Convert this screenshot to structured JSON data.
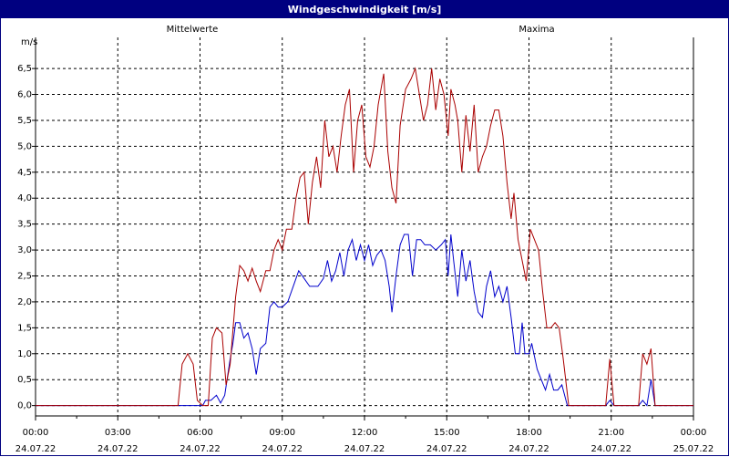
{
  "window": {
    "title": "Windgeschwindigkeit [m/s]"
  },
  "chart_data": {
    "type": "line",
    "title": "Windgeschwindigkeit [m/s]",
    "ylabel": "m/s",
    "ylim": [
      -0.2,
      7.1
    ],
    "xlim_hours": [
      0,
      24
    ],
    "grid": true,
    "x_ticks": [
      {
        "time": "00:00",
        "date": "24.07.22"
      },
      {
        "time": "03:00",
        "date": "24.07.22"
      },
      {
        "time": "06:00",
        "date": "24.07.22"
      },
      {
        "time": "09:00",
        "date": "24.07.22"
      },
      {
        "time": "12:00",
        "date": "24.07.22"
      },
      {
        "time": "15:00",
        "date": "24.07.22"
      },
      {
        "time": "18:00",
        "date": "24.07.22"
      },
      {
        "time": "21:00",
        "date": "24.07.22"
      },
      {
        "time": "00:00",
        "date": "25.07.22"
      }
    ],
    "y_ticks": [
      "0,0",
      "0,5",
      "1,0",
      "1,5",
      "2,0",
      "2,5",
      "3,0",
      "3,5",
      "4,0",
      "4,5",
      "5,0",
      "5,5",
      "6,0",
      "6,5"
    ],
    "y_tick_values": [
      0,
      0.5,
      1,
      1.5,
      2,
      2.5,
      3,
      3.5,
      4,
      4.5,
      5,
      5.5,
      6,
      6.5
    ],
    "series": [
      {
        "name": "Mittelwerte",
        "color": "#0000cc",
        "points": [
          [
            0,
            0
          ],
          [
            5.0,
            0
          ],
          [
            5.4,
            0
          ],
          [
            5.8,
            0
          ],
          [
            6.1,
            0
          ],
          [
            6.2,
            0.1
          ],
          [
            6.4,
            0.1
          ],
          [
            6.6,
            0.2
          ],
          [
            6.75,
            0.05
          ],
          [
            6.9,
            0.2
          ],
          [
            7.1,
            0.9
          ],
          [
            7.2,
            1.2
          ],
          [
            7.3,
            1.6
          ],
          [
            7.45,
            1.6
          ],
          [
            7.6,
            1.3
          ],
          [
            7.75,
            1.4
          ],
          [
            7.9,
            1.1
          ],
          [
            8.05,
            0.6
          ],
          [
            8.2,
            1.1
          ],
          [
            8.4,
            1.2
          ],
          [
            8.55,
            1.9
          ],
          [
            8.7,
            2.0
          ],
          [
            8.85,
            1.9
          ],
          [
            9.0,
            1.9
          ],
          [
            9.2,
            2.0
          ],
          [
            9.4,
            2.3
          ],
          [
            9.6,
            2.6
          ],
          [
            9.8,
            2.45
          ],
          [
            10.0,
            2.3
          ],
          [
            10.3,
            2.3
          ],
          [
            10.5,
            2.45
          ],
          [
            10.65,
            2.8
          ],
          [
            10.8,
            2.4
          ],
          [
            10.95,
            2.6
          ],
          [
            11.1,
            2.95
          ],
          [
            11.25,
            2.5
          ],
          [
            11.4,
            3.0
          ],
          [
            11.55,
            3.2
          ],
          [
            11.7,
            2.8
          ],
          [
            11.85,
            3.1
          ],
          [
            12.0,
            2.8
          ],
          [
            12.15,
            3.1
          ],
          [
            12.3,
            2.7
          ],
          [
            12.45,
            2.9
          ],
          [
            12.6,
            3.0
          ],
          [
            12.75,
            2.8
          ],
          [
            12.9,
            2.3
          ],
          [
            13.0,
            1.8
          ],
          [
            13.15,
            2.5
          ],
          [
            13.3,
            3.1
          ],
          [
            13.45,
            3.3
          ],
          [
            13.6,
            3.3
          ],
          [
            13.75,
            2.5
          ],
          [
            13.9,
            3.2
          ],
          [
            14.05,
            3.2
          ],
          [
            14.2,
            3.1
          ],
          [
            14.4,
            3.1
          ],
          [
            14.6,
            3.0
          ],
          [
            14.8,
            3.1
          ],
          [
            14.95,
            3.2
          ],
          [
            15.05,
            2.5
          ],
          [
            15.15,
            3.3
          ],
          [
            15.25,
            2.8
          ],
          [
            15.4,
            2.1
          ],
          [
            15.55,
            3.0
          ],
          [
            15.7,
            2.4
          ],
          [
            15.85,
            2.8
          ],
          [
            16.0,
            2.2
          ],
          [
            16.15,
            1.8
          ],
          [
            16.3,
            1.7
          ],
          [
            16.45,
            2.3
          ],
          [
            16.6,
            2.6
          ],
          [
            16.75,
            2.1
          ],
          [
            16.9,
            2.3
          ],
          [
            17.05,
            2.0
          ],
          [
            17.2,
            2.3
          ],
          [
            17.35,
            1.7
          ],
          [
            17.5,
            1.0
          ],
          [
            17.65,
            1.0
          ],
          [
            17.75,
            1.6
          ],
          [
            17.85,
            1.0
          ],
          [
            18.0,
            1.0
          ],
          [
            18.1,
            1.2
          ],
          [
            18.3,
            0.7
          ],
          [
            18.45,
            0.5
          ],
          [
            18.6,
            0.3
          ],
          [
            18.75,
            0.6
          ],
          [
            18.9,
            0.3
          ],
          [
            19.05,
            0.3
          ],
          [
            19.2,
            0.4
          ],
          [
            19.4,
            0
          ],
          [
            19.6,
            0
          ],
          [
            20.8,
            0
          ],
          [
            20.95,
            0.1
          ],
          [
            21.1,
            0
          ],
          [
            22.0,
            0
          ],
          [
            22.15,
            0.1
          ],
          [
            22.3,
            0
          ],
          [
            22.45,
            0.5
          ],
          [
            22.6,
            0
          ],
          [
            23.0,
            0
          ],
          [
            24.0,
            0
          ]
        ]
      },
      {
        "name": "Maxima",
        "color": "#aa0000",
        "points": [
          [
            0,
            0
          ],
          [
            5.2,
            0
          ],
          [
            5.35,
            0.8
          ],
          [
            5.55,
            1.0
          ],
          [
            5.75,
            0.8
          ],
          [
            5.9,
            0.1
          ],
          [
            6.1,
            0
          ],
          [
            6.3,
            0
          ],
          [
            6.45,
            1.3
          ],
          [
            6.6,
            1.5
          ],
          [
            6.8,
            1.4
          ],
          [
            6.95,
            0.4
          ],
          [
            7.1,
            0.8
          ],
          [
            7.3,
            2.1
          ],
          [
            7.45,
            2.7
          ],
          [
            7.6,
            2.6
          ],
          [
            7.75,
            2.4
          ],
          [
            7.9,
            2.65
          ],
          [
            8.05,
            2.4
          ],
          [
            8.2,
            2.2
          ],
          [
            8.4,
            2.6
          ],
          [
            8.55,
            2.6
          ],
          [
            8.7,
            3.0
          ],
          [
            8.85,
            3.2
          ],
          [
            9.0,
            3.0
          ],
          [
            9.15,
            3.4
          ],
          [
            9.35,
            3.4
          ],
          [
            9.5,
            4.0
          ],
          [
            9.65,
            4.4
          ],
          [
            9.8,
            4.5
          ],
          [
            9.95,
            3.5
          ],
          [
            10.1,
            4.3
          ],
          [
            10.25,
            4.8
          ],
          [
            10.4,
            4.2
          ],
          [
            10.55,
            5.5
          ],
          [
            10.7,
            4.8
          ],
          [
            10.85,
            5.0
          ],
          [
            11.0,
            4.5
          ],
          [
            11.15,
            5.2
          ],
          [
            11.3,
            5.8
          ],
          [
            11.45,
            6.1
          ],
          [
            11.6,
            4.5
          ],
          [
            11.75,
            5.5
          ],
          [
            11.9,
            5.8
          ],
          [
            12.05,
            4.8
          ],
          [
            12.2,
            4.6
          ],
          [
            12.35,
            5.0
          ],
          [
            12.5,
            5.8
          ],
          [
            12.7,
            6.4
          ],
          [
            12.85,
            4.9
          ],
          [
            13.0,
            4.2
          ],
          [
            13.15,
            3.9
          ],
          [
            13.3,
            5.4
          ],
          [
            13.5,
            6.1
          ],
          [
            13.7,
            6.3
          ],
          [
            13.85,
            6.5
          ],
          [
            14.0,
            6.0
          ],
          [
            14.15,
            5.5
          ],
          [
            14.3,
            5.8
          ],
          [
            14.45,
            6.5
          ],
          [
            14.6,
            5.7
          ],
          [
            14.75,
            6.3
          ],
          [
            14.9,
            6.0
          ],
          [
            15.05,
            5.2
          ],
          [
            15.15,
            6.1
          ],
          [
            15.3,
            5.8
          ],
          [
            15.4,
            5.5
          ],
          [
            15.55,
            4.5
          ],
          [
            15.7,
            5.6
          ],
          [
            15.85,
            4.9
          ],
          [
            16.0,
            5.8
          ],
          [
            16.15,
            4.5
          ],
          [
            16.3,
            4.8
          ],
          [
            16.45,
            5.0
          ],
          [
            16.6,
            5.4
          ],
          [
            16.75,
            5.7
          ],
          [
            16.9,
            5.7
          ],
          [
            17.05,
            5.2
          ],
          [
            17.2,
            4.3
          ],
          [
            17.35,
            3.6
          ],
          [
            17.45,
            4.1
          ],
          [
            17.6,
            3.2
          ],
          [
            17.75,
            2.8
          ],
          [
            17.9,
            2.4
          ],
          [
            18.05,
            3.4
          ],
          [
            18.2,
            3.2
          ],
          [
            18.35,
            3.0
          ],
          [
            18.5,
            2.2
          ],
          [
            18.65,
            1.5
          ],
          [
            18.8,
            1.5
          ],
          [
            18.95,
            1.6
          ],
          [
            19.1,
            1.5
          ],
          [
            19.25,
            0.9
          ],
          [
            19.45,
            0
          ],
          [
            19.65,
            0
          ],
          [
            20.8,
            0
          ],
          [
            20.95,
            0.9
          ],
          [
            21.1,
            0
          ],
          [
            22.0,
            0
          ],
          [
            22.15,
            1.0
          ],
          [
            22.3,
            0.8
          ],
          [
            22.45,
            1.1
          ],
          [
            22.6,
            0
          ],
          [
            23.0,
            0
          ],
          [
            24.0,
            0
          ]
        ]
      }
    ]
  }
}
